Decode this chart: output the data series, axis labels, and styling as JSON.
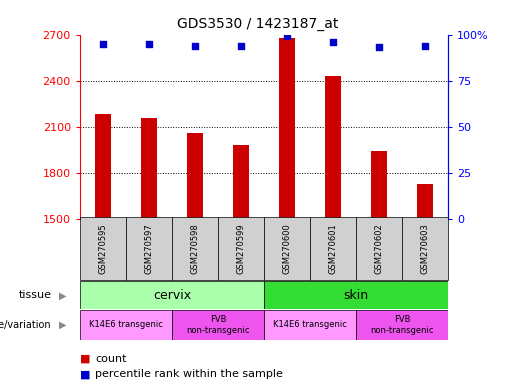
{
  "title": "GDS3530 / 1423187_at",
  "samples": [
    "GSM270595",
    "GSM270597",
    "GSM270598",
    "GSM270599",
    "GSM270600",
    "GSM270601",
    "GSM270602",
    "GSM270603"
  ],
  "counts": [
    2180,
    2155,
    2060,
    1980,
    2680,
    2430,
    1940,
    1730
  ],
  "percentiles": [
    95,
    95,
    94,
    94,
    99,
    96,
    93,
    94
  ],
  "ylim_left": [
    1500,
    2700
  ],
  "ylim_right": [
    0,
    100
  ],
  "yticks_left": [
    1500,
    1800,
    2100,
    2400,
    2700
  ],
  "yticks_right": [
    0,
    25,
    50,
    75,
    100
  ],
  "bar_color": "#cc0000",
  "dot_color": "#0000cc",
  "tissue": [
    {
      "label": "cervix",
      "start": 0,
      "end": 4,
      "color": "#aaffaa"
    },
    {
      "label": "skin",
      "start": 4,
      "end": 8,
      "color": "#33dd33"
    }
  ],
  "genotype": [
    {
      "label": "K14E6 transgenic",
      "start": 0,
      "end": 2,
      "color": "#ff99ff"
    },
    {
      "label": "FVB\nnon-transgenic",
      "start": 2,
      "end": 4,
      "color": "#ee55ee"
    },
    {
      "label": "K14E6 transgenic",
      "start": 4,
      "end": 6,
      "color": "#ff99ff"
    },
    {
      "label": "FVB\nnon-transgenic",
      "start": 6,
      "end": 8,
      "color": "#ee55ee"
    }
  ],
  "legend_count_color": "#cc0000",
  "legend_pct_color": "#0000cc",
  "background_color": "#ffffff"
}
